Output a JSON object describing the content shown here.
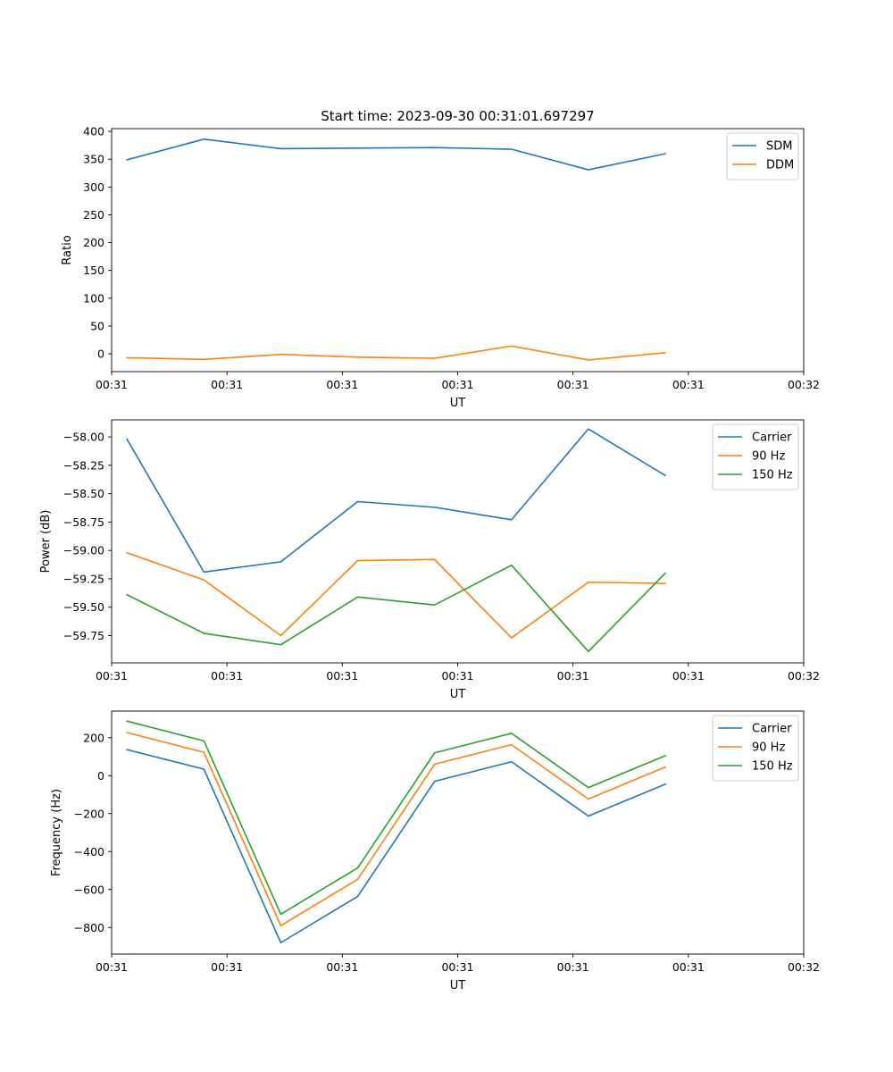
{
  "chart_data": [
    {
      "type": "line",
      "title": "Start time: 2023-09-30 00:31:01.697297",
      "xlabel": "UT",
      "ylabel": "Ratio",
      "x": [
        1,
        2,
        3,
        4,
        5,
        6,
        7,
        8
      ],
      "xlim": [
        0.8,
        9.8
      ],
      "xticks": [
        0.8,
        2.3,
        3.8,
        5.3,
        6.8,
        8.3,
        9.8
      ],
      "xtick_labels": [
        "00:31",
        "00:31",
        "00:31",
        "00:31",
        "00:31",
        "00:31",
        "00:32"
      ],
      "ylim": [
        -32,
        405
      ],
      "yticks": [
        0,
        50,
        100,
        150,
        200,
        250,
        300,
        350,
        400
      ],
      "ytick_labels": [
        "0",
        "50",
        "100",
        "150",
        "200",
        "250",
        "300",
        "350",
        "400"
      ],
      "legend_position": "top-right",
      "series": [
        {
          "name": "SDM",
          "color": "#1f77b4",
          "values": [
            349,
            386,
            369,
            370,
            371,
            368,
            331,
            360
          ]
        },
        {
          "name": "DDM",
          "color": "#ff7f0e",
          "values": [
            -7,
            -10,
            -1,
            -6,
            -8,
            14,
            -11,
            2
          ]
        }
      ]
    },
    {
      "type": "line",
      "title": "",
      "xlabel": "UT",
      "ylabel": "Power (dB)",
      "x": [
        1,
        2,
        3,
        4,
        5,
        6,
        7,
        8
      ],
      "xlim": [
        0.8,
        9.8
      ],
      "xticks": [
        0.8,
        2.3,
        3.8,
        5.3,
        6.8,
        8.3,
        9.8
      ],
      "xtick_labels": [
        "00:31",
        "00:31",
        "00:31",
        "00:31",
        "00:31",
        "00:31",
        "00:32"
      ],
      "ylim": [
        -59.99,
        -57.85
      ],
      "yticks": [
        -59.75,
        -59.5,
        -59.25,
        -59.0,
        -58.75,
        -58.5,
        -58.25,
        -58.0
      ],
      "ytick_labels": [
        "−59.75",
        "−59.50",
        "−59.25",
        "−59.00",
        "−58.75",
        "−58.50",
        "−58.25",
        "−58.00"
      ],
      "legend_position": "top-right",
      "series": [
        {
          "name": "Carrier",
          "color": "#1f77b4",
          "values": [
            -58.02,
            -59.19,
            -59.1,
            -58.57,
            -58.62,
            -58.73,
            -57.93,
            -58.34
          ]
        },
        {
          "name": "90 Hz",
          "color": "#ff7f0e",
          "values": [
            -59.02,
            -59.26,
            -59.75,
            -59.09,
            -59.08,
            -59.77,
            -59.28,
            -59.29
          ]
        },
        {
          "name": "150 Hz",
          "color": "#2ca02c",
          "values": [
            -59.39,
            -59.73,
            -59.83,
            -59.41,
            -59.48,
            -59.13,
            -59.89,
            -59.2
          ]
        }
      ]
    },
    {
      "type": "line",
      "title": "",
      "xlabel": "UT",
      "ylabel": "Frequency (Hz)",
      "x": [
        1,
        2,
        3,
        4,
        5,
        6,
        7,
        8
      ],
      "xlim": [
        0.8,
        9.8
      ],
      "xticks": [
        0.8,
        2.3,
        3.8,
        5.3,
        6.8,
        8.3,
        9.8
      ],
      "xtick_labels": [
        "00:31",
        "00:31",
        "00:31",
        "00:31",
        "00:31",
        "00:31",
        "00:32"
      ],
      "ylim": [
        -940,
        340
      ],
      "yticks": [
        -800,
        -600,
        -400,
        -200,
        0,
        200
      ],
      "ytick_labels": [
        "−800",
        "−600",
        "−400",
        "−200",
        "0",
        "200"
      ],
      "legend_position": "top-right",
      "series": [
        {
          "name": "Carrier",
          "color": "#1f77b4",
          "values": [
            137,
            34,
            -880,
            -636,
            -30,
            73,
            -213,
            -45
          ]
        },
        {
          "name": "90 Hz",
          "color": "#ff7f0e",
          "values": [
            227,
            123,
            -790,
            -546,
            60,
            163,
            -123,
            45
          ]
        },
        {
          "name": "150 Hz",
          "color": "#2ca02c",
          "values": [
            287,
            183,
            -730,
            -486,
            120,
            223,
            -63,
            105
          ]
        }
      ]
    }
  ]
}
